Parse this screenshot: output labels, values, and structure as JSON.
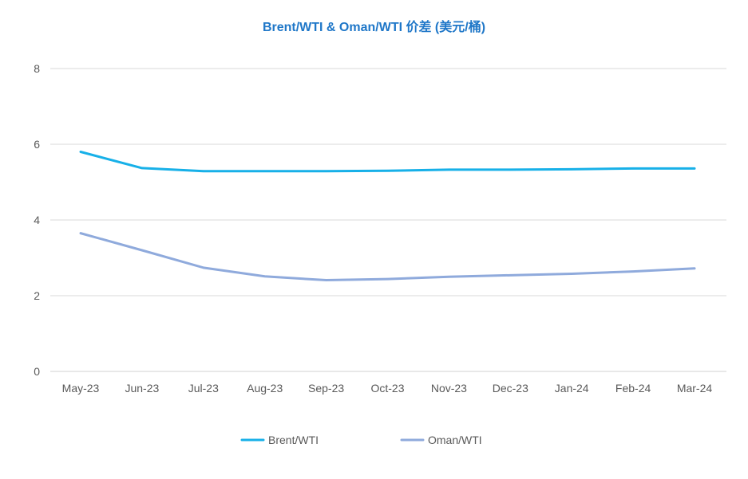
{
  "chart_data": {
    "type": "line",
    "title": "Brent/WTI & Oman/WTI 价差 (美元/桶)",
    "xlabel": "",
    "ylabel": "",
    "categories": [
      "May-23",
      "Jun-23",
      "Jul-23",
      "Aug-23",
      "Sep-23",
      "Oct-23",
      "Nov-23",
      "Dec-23",
      "Jan-24",
      "Feb-24",
      "Mar-24"
    ],
    "ylim": [
      0,
      8
    ],
    "yticks": [
      0,
      2,
      4,
      6,
      8
    ],
    "grid": true,
    "legend_position": "bottom",
    "series": [
      {
        "name": "Brent/WTI",
        "color": "#17b0e8",
        "values": [
          5.8,
          5.37,
          5.29,
          5.29,
          5.29,
          5.3,
          5.33,
          5.33,
          5.34,
          5.36,
          5.36
        ]
      },
      {
        "name": "Oman/WTI",
        "color": "#8faadc",
        "values": [
          3.65,
          3.2,
          2.74,
          2.51,
          2.41,
          2.44,
          2.5,
          2.54,
          2.58,
          2.64,
          2.72
        ]
      }
    ]
  }
}
